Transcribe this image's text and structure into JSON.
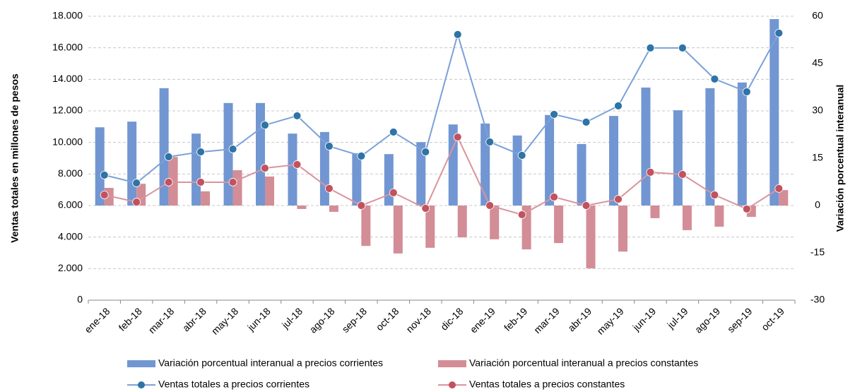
{
  "chart_data": {
    "type": "combo",
    "y_label": "Ventas totales en millones de pesos",
    "y2_label": "Variación porcentual interanual",
    "categories": [
      "ene-18",
      "feb-18",
      "mar-18",
      "abr-18",
      "may-18",
      "jun-18",
      "jul-18",
      "ago-18",
      "sep-18",
      "oct-18",
      "nov-18",
      "dic-18",
      "ene-19",
      "feb-19",
      "mar-19",
      "abr-19",
      "may-19",
      "jun-19",
      "jul-19",
      "ago-19",
      "sep-19",
      "oct-19"
    ],
    "ylim": [
      0,
      18000
    ],
    "yticks": [
      0,
      {
        "value": 2000,
        "label": "2.000"
      },
      {
        "value": 4000,
        "label": "4.000"
      },
      {
        "value": 6000,
        "label": "6.000"
      },
      {
        "value": 8000,
        "label": "8.000"
      },
      {
        "value": 10000,
        "label": "10.000"
      },
      {
        "value": 12000,
        "label": "12.000"
      },
      {
        "value": 14000,
        "label": "14.000"
      },
      {
        "value": 16000,
        "label": "16.000"
      },
      {
        "value": 18000,
        "label": "18.000"
      }
    ],
    "y2lim": [
      -30,
      60
    ],
    "y2ticks": [
      -30,
      -15,
      0,
      15,
      30,
      45,
      60
    ],
    "grid": true,
    "series": [
      {
        "name": "Variación porcentual interanual a precios corrientes",
        "type": "bar",
        "axis": "y2",
        "color": "#7296d2",
        "values": [
          24.8,
          26.6,
          37.2,
          22.8,
          32.5,
          32.5,
          22.8,
          23.3,
          16.6,
          16.3,
          20.1,
          25.7,
          26.0,
          22.2,
          28.7,
          19.5,
          28.4,
          37.4,
          30.2,
          37.2,
          39.0,
          59.1
        ]
      },
      {
        "name": "Variación porcentual interanual a precios constantes",
        "type": "bar",
        "axis": "y2",
        "color": "#d38d96",
        "values": [
          5.6,
          6.9,
          15.4,
          4.5,
          11.2,
          9.2,
          -1.1,
          -2.0,
          -12.8,
          -15.2,
          -13.4,
          -10.1,
          -10.7,
          -13.9,
          -11.9,
          -19.9,
          -14.6,
          -4.0,
          -7.8,
          -6.7,
          -3.6,
          4.9
        ]
      },
      {
        "name": "Ventas totales a precios corrientes",
        "type": "line",
        "color": "#7ba1d8",
        "marker_color": "#2e74a6",
        "values": [
          7930,
          7430,
          9090,
          9400,
          9580,
          11100,
          11690,
          9760,
          9140,
          10660,
          9400,
          16840,
          10030,
          9180,
          11780,
          11290,
          12320,
          15990,
          15990,
          14020,
          13210,
          16930
        ]
      },
      {
        "name": "Ventas totales a precios constantes",
        "type": "line",
        "color": "#d9949d",
        "marker_color": "#c2525f",
        "values": [
          6670,
          6220,
          7480,
          7480,
          7480,
          8370,
          8600,
          7080,
          6000,
          6810,
          5820,
          10340,
          6000,
          5420,
          6540,
          6000,
          6400,
          8110,
          7970,
          6670,
          5780,
          7080
        ]
      }
    ]
  }
}
